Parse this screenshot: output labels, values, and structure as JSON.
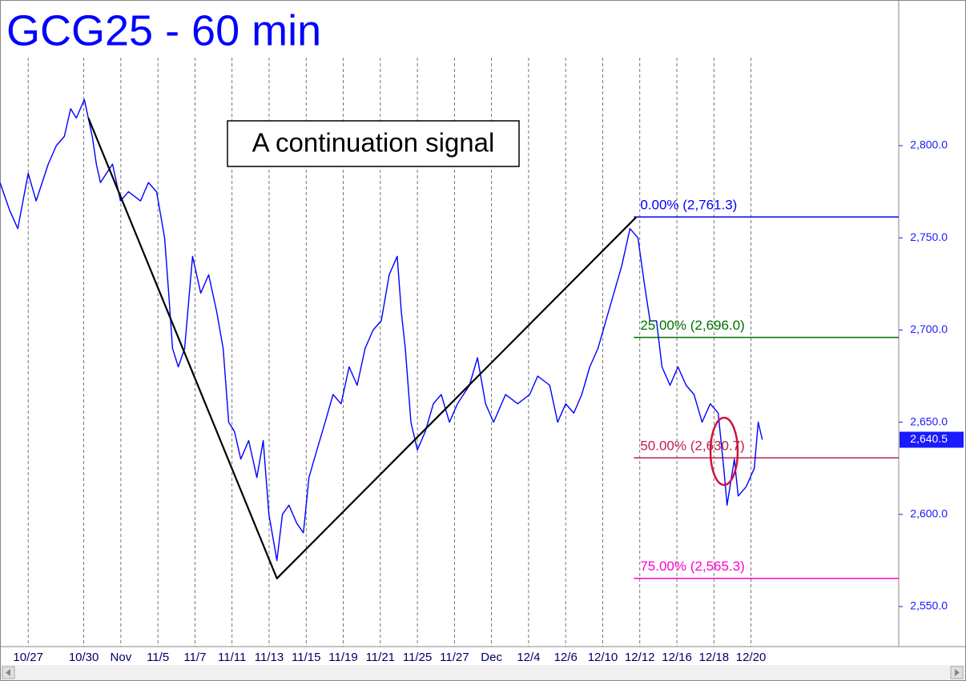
{
  "chart_data": {
    "type": "line",
    "title": "GCG25 - 60 min",
    "annotation": "A continuation signal",
    "xlim": [
      -1.52,
      46.97
    ],
    "ylim": [
      2528.3,
      2879
    ],
    "xticks": [
      {
        "value": 0,
        "label": "10/27"
      },
      {
        "value": 3,
        "label": "10/30"
      },
      {
        "value": 5,
        "label": "Nov"
      },
      {
        "value": 7,
        "label": "11/5"
      },
      {
        "value": 9,
        "label": "11/7"
      },
      {
        "value": 11,
        "label": "11/11"
      },
      {
        "value": 13,
        "label": "11/13"
      },
      {
        "value": 15,
        "label": "11/15"
      },
      {
        "value": 17,
        "label": "11/19"
      },
      {
        "value": 19,
        "label": "11/21"
      },
      {
        "value": 21,
        "label": "11/25"
      },
      {
        "value": 23,
        "label": "11/27"
      },
      {
        "value": 25,
        "label": "Dec"
      },
      {
        "value": 27,
        "label": "12/4"
      },
      {
        "value": 29,
        "label": "12/6"
      },
      {
        "value": 31,
        "label": "12/10"
      },
      {
        "value": 33,
        "label": "12/12"
      },
      {
        "value": 35,
        "label": "12/16"
      },
      {
        "value": 37,
        "label": "12/18"
      },
      {
        "value": 39,
        "label": "12/20"
      }
    ],
    "yticks": [
      {
        "value": 2550,
        "label": "2,550.0"
      },
      {
        "value": 2600,
        "label": "2,600.0"
      },
      {
        "value": 2650,
        "label": "2,650.0"
      },
      {
        "value": 2700,
        "label": "2,700.0"
      },
      {
        "value": 2750,
        "label": "2,750.0"
      },
      {
        "value": 2800,
        "label": "2,800.0"
      }
    ],
    "grid": true,
    "series": [
      {
        "color": "#0000ff",
        "x": [
          -1.52,
          -1.0,
          -0.56,
          0,
          0.43,
          1.08,
          1.52,
          1.95,
          2.29,
          2.6,
          3.03,
          3.46,
          3.68,
          3.9,
          4.55,
          4.98,
          5.41,
          6.06,
          6.49,
          6.93,
          7.36,
          7.58,
          7.79,
          8.1,
          8.44,
          8.87,
          9.31,
          9.74,
          10.17,
          10.52,
          10.82,
          11.13,
          11.47,
          11.9,
          12.34,
          12.68,
          12.99,
          13.42,
          13.72,
          14.07,
          14.5,
          14.85,
          15.15,
          15.58,
          16.02,
          16.45,
          16.88,
          17.32,
          17.75,
          18.18,
          18.61,
          19.05,
          19.48,
          19.91,
          20.13,
          20.35,
          20.65,
          21.0,
          21.43,
          21.86,
          22.29,
          22.73,
          23.16,
          23.81,
          24.24,
          24.68,
          25.11,
          25.76,
          26.41,
          27.06,
          27.49,
          28.14,
          28.57,
          29.0,
          29.44,
          29.87,
          30.3,
          30.74,
          31.17,
          31.6,
          32.03,
          32.47,
          32.9,
          33.25,
          33.55,
          33.9,
          34.2,
          34.63,
          35.06,
          35.5,
          35.93,
          36.36,
          36.8,
          37.23,
          37.53,
          37.71,
          38.1,
          38.31,
          38.74,
          39.18,
          39.39,
          39.61
        ],
        "values": [
          2780,
          2765,
          2755,
          2785,
          2770,
          2790,
          2800,
          2805,
          2820,
          2815,
          2825,
          2805,
          2790,
          2780,
          2790,
          2770,
          2775,
          2770,
          2780,
          2775,
          2750,
          2720,
          2690,
          2680,
          2690,
          2740,
          2720,
          2730,
          2710,
          2690,
          2650,
          2645,
          2630,
          2640,
          2620,
          2640,
          2600,
          2575,
          2600,
          2605,
          2595,
          2590,
          2620,
          2635,
          2650,
          2665,
          2660,
          2680,
          2670,
          2690,
          2700,
          2705,
          2730,
          2740,
          2710,
          2690,
          2650,
          2635,
          2645,
          2660,
          2665,
          2650,
          2660,
          2670,
          2685,
          2660,
          2650,
          2665,
          2660,
          2665,
          2675,
          2670,
          2650,
          2660,
          2655,
          2665,
          2680,
          2690,
          2705,
          2720,
          2735,
          2755,
          2750,
          2725,
          2705,
          2705,
          2680,
          2670,
          2680,
          2670,
          2665,
          2650,
          2660,
          2655,
          2625,
          2605,
          2630,
          2610,
          2615,
          2625,
          2650,
          2640.5
        ]
      },
      {
        "color": "#000000",
        "x": [
          3.25,
          13.42,
          32.81
        ],
        "values": [
          2815,
          2565.3,
          2761.3
        ]
      }
    ],
    "last_price": {
      "value": 2640.5,
      "label": "2,640.5"
    },
    "levels_start": 32.68,
    "levels": [
      {
        "label": "0.00% (2,761.3)",
        "value": 2761.3,
        "color": "#0000ff"
      },
      {
        "label": "25.00% (2,696.0)",
        "value": 2696.0,
        "color": "#007000"
      },
      {
        "label": "50.00% (2,630.7)",
        "value": 2630.7,
        "color": "#c0204a"
      },
      {
        "label": "75.00% (2,565.3)",
        "value": 2565.3,
        "color": "#ff00cc"
      }
    ]
  }
}
